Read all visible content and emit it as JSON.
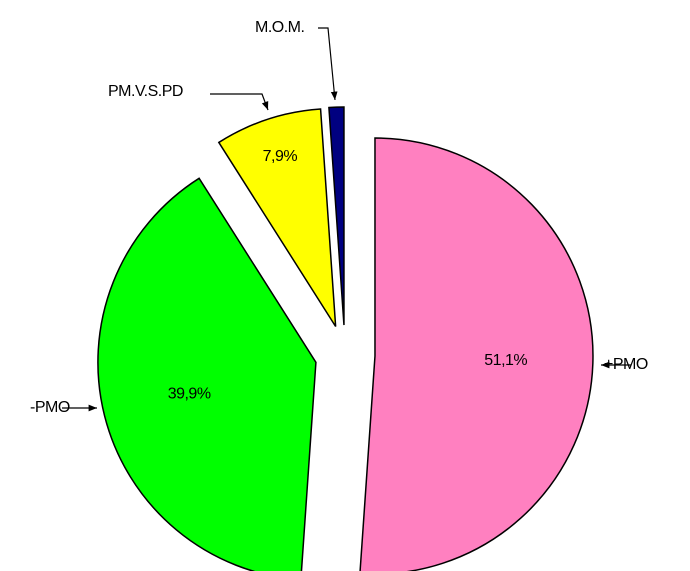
{
  "chart_data": {
    "type": "pie",
    "categories": [
      "+PMO",
      "-PMO",
      "PM.V.S.PD",
      "M.O.M."
    ],
    "values": [
      51.1,
      39.9,
      7.9,
      1.1
    ],
    "value_labels": [
      "51,1%",
      "39,9%",
      "7,9%",
      null
    ],
    "colors": [
      "#ff80c0",
      "#00ff00",
      "#ffff00",
      "#000080"
    ]
  }
}
